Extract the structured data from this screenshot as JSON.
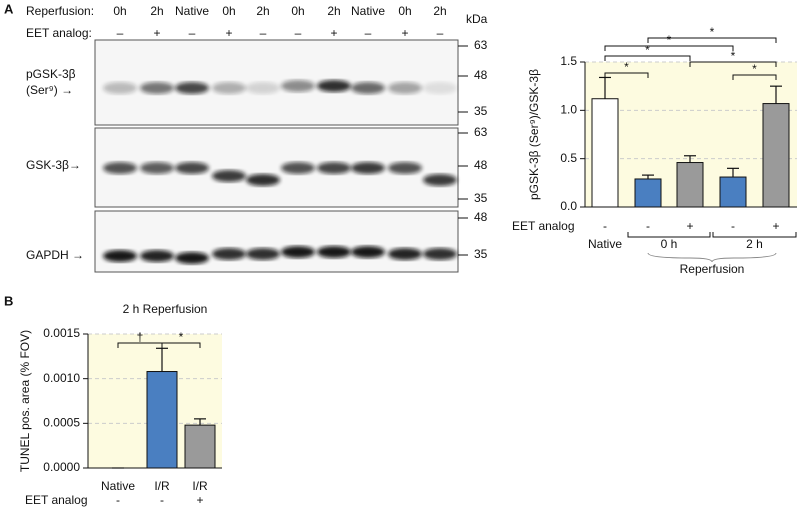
{
  "panel_labels": [
    "A",
    "B"
  ],
  "blot": {
    "reperfusion_label": "Reperfusion:",
    "eet_label": "EET analog:",
    "lanes": [
      "0h",
      "2h",
      "Native",
      "0h",
      "2h",
      "0h",
      "2h",
      "Native",
      "0h",
      "2h"
    ],
    "eet": [
      "–",
      "+",
      "–",
      "+",
      "–",
      "–",
      "+",
      "–",
      "+",
      "–"
    ],
    "kda_label": "kDa",
    "rows": [
      {
        "label": [
          "pGSK-3β",
          "(Ser⁹) →"
        ],
        "markers": [
          "63",
          "48",
          "35"
        ]
      },
      {
        "label": [
          "GSK-3β→"
        ],
        "markers": [
          "63",
          "48",
          "35"
        ]
      },
      {
        "label": [
          "GAPDH →"
        ],
        "markers": [
          "48",
          "35"
        ]
      }
    ]
  },
  "chart_data": [
    {
      "type": "bar",
      "ylabel": "pGSK-3β (Ser⁹)/GSK-3β",
      "values": [
        1.12,
        0.29,
        0.46,
        0.31,
        1.07
      ],
      "errors": [
        0.22,
        0.04,
        0.07,
        0.09,
        0.18
      ],
      "colors": [
        "#ffffff",
        "#4a7fc1",
        "#9a9a9a",
        "#4a7fc1",
        "#9a9a9a"
      ],
      "eet_label": "EET analog",
      "eet": [
        "-",
        "-",
        "+",
        "-",
        "+"
      ],
      "groups": [
        "Native",
        "0 h",
        "2 h"
      ],
      "group_label": "Reperfusion",
      "ylim": [
        0,
        1.5
      ],
      "yticks": [
        {
          "value": 0,
          "label": "0.0"
        },
        {
          "value": 0.5,
          "label": "0.5"
        },
        {
          "value": 1,
          "label": "1.0"
        },
        {
          "value": 1.5,
          "label": "1.5"
        }
      ],
      "grid": true,
      "annotations": [
        "*",
        "*",
        "*",
        "*",
        "*",
        "*"
      ]
    },
    {
      "type": "bar",
      "title": "2 h Reperfusion",
      "ylabel": "TUNEL pos. area (% FOV)",
      "categories": [
        "Native",
        "I/R",
        "I/R"
      ],
      "values": [
        0,
        0.00108,
        0.00048
      ],
      "errors": [
        0,
        0.00026,
        7e-05
      ],
      "colors": [
        "#ffffff",
        "#4a7fc1",
        "#9a9a9a"
      ],
      "eet_label": "EET analog",
      "eet": [
        "-",
        "-",
        "+"
      ],
      "ylim": [
        0,
        0.0015
      ],
      "yticks": [
        {
          "value": 0,
          "label": "0.0000"
        },
        {
          "value": 0.0005,
          "label": "0.0005"
        },
        {
          "value": 0.001,
          "label": "0.0010"
        },
        {
          "value": 0.0015,
          "label": "0.0015"
        }
      ],
      "grid": true,
      "annotations": [
        "†",
        "*"
      ]
    }
  ]
}
